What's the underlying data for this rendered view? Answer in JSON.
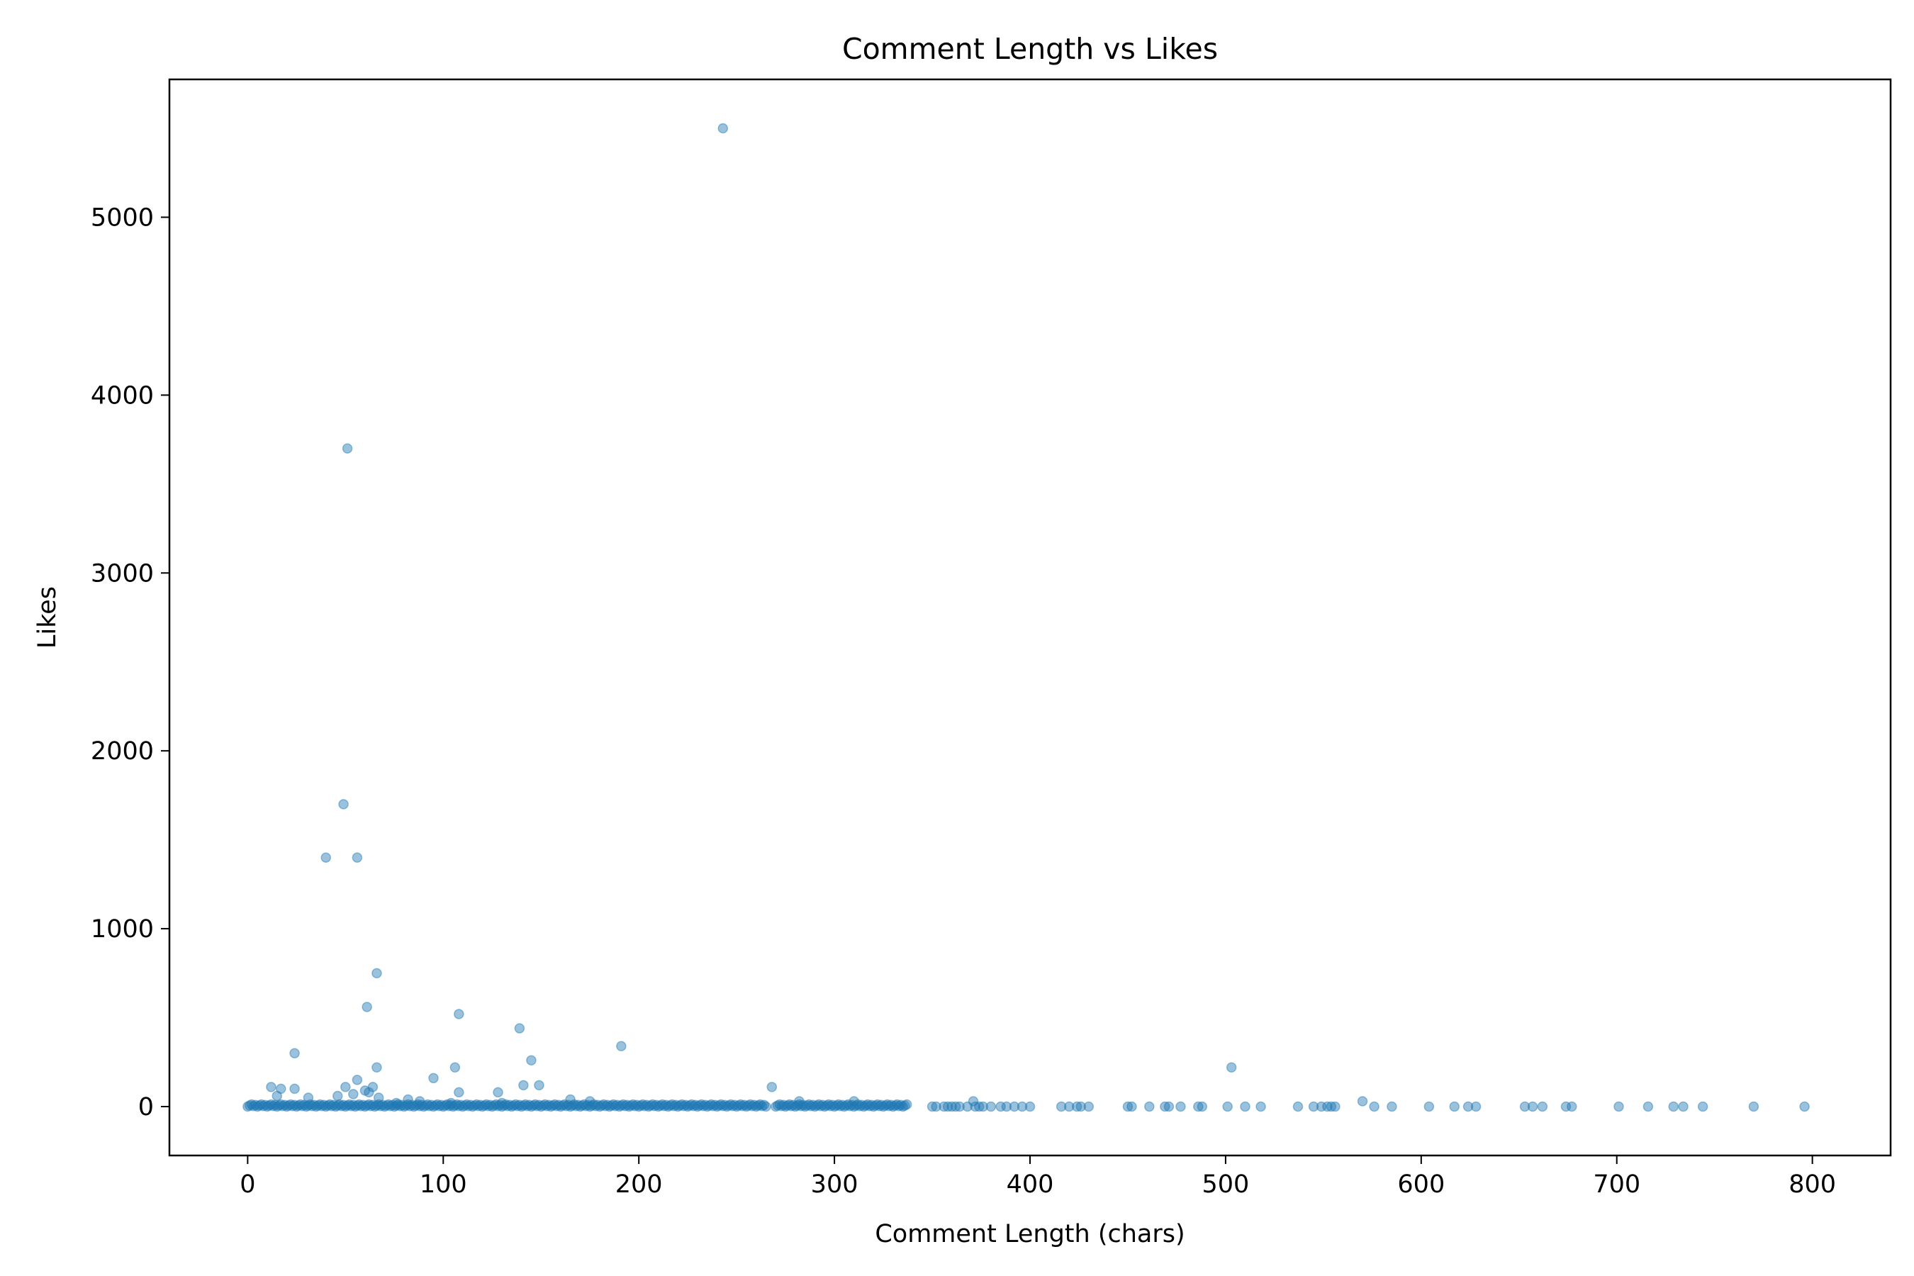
{
  "chart_data": {
    "type": "scatter",
    "title": "Comment Length vs Likes",
    "xlabel": "Comment Length (chars)",
    "ylabel": "Likes",
    "xlim": [
      -40,
      840
    ],
    "ylim": [
      -275,
      5775
    ],
    "xticks": [
      0,
      100,
      200,
      300,
      400,
      500,
      600,
      700,
      800
    ],
    "yticks": [
      0,
      1000,
      2000,
      3000,
      4000,
      5000
    ],
    "grid": false,
    "legend": "none",
    "colors": {
      "marker": "#1f77b4"
    },
    "marker_alpha": 0.45,
    "baseline_dense_ranges": [
      [
        0,
        265
      ],
      [
        270,
        337
      ]
    ],
    "points": [
      [
        243,
        5500
      ],
      [
        51,
        3700
      ],
      [
        49,
        1700
      ],
      [
        40,
        1400
      ],
      [
        56,
        1400
      ],
      [
        66,
        750
      ],
      [
        61,
        560
      ],
      [
        108,
        520
      ],
      [
        139,
        440
      ],
      [
        191,
        340
      ],
      [
        24,
        300
      ],
      [
        145,
        260
      ],
      [
        66,
        220
      ],
      [
        106,
        220
      ],
      [
        503,
        220
      ],
      [
        95,
        160
      ],
      [
        56,
        150
      ],
      [
        149,
        120
      ],
      [
        141,
        120
      ],
      [
        268,
        110
      ],
      [
        12,
        110
      ],
      [
        50,
        110
      ],
      [
        64,
        110
      ],
      [
        17,
        100
      ],
      [
        24,
        100
      ],
      [
        60,
        90
      ],
      [
        62,
        80
      ],
      [
        108,
        80
      ],
      [
        128,
        80
      ],
      [
        54,
        70
      ],
      [
        15,
        60
      ],
      [
        46,
        60
      ],
      [
        31,
        50
      ],
      [
        67,
        50
      ],
      [
        82,
        40
      ],
      [
        165,
        40
      ],
      [
        175,
        30
      ],
      [
        88,
        30
      ],
      [
        282,
        30
      ],
      [
        310,
        30
      ],
      [
        371,
        30
      ],
      [
        570,
        30
      ],
      [
        104,
        20
      ],
      [
        130,
        20
      ],
      [
        76,
        20
      ],
      [
        350,
        0
      ],
      [
        352,
        0
      ],
      [
        356,
        0
      ],
      [
        358,
        0
      ],
      [
        360,
        0
      ],
      [
        362,
        0
      ],
      [
        364,
        0
      ],
      [
        368,
        0
      ],
      [
        372,
        0
      ],
      [
        374,
        0
      ],
      [
        376,
        0
      ],
      [
        380,
        0
      ],
      [
        385,
        0
      ],
      [
        388,
        0
      ],
      [
        392,
        0
      ],
      [
        396,
        0
      ],
      [
        400,
        0
      ],
      [
        416,
        0
      ],
      [
        420,
        0
      ],
      [
        424,
        0
      ],
      [
        426,
        0
      ],
      [
        430,
        0
      ],
      [
        450,
        0
      ],
      [
        452,
        0
      ],
      [
        461,
        0
      ],
      [
        469,
        0
      ],
      [
        471,
        0
      ],
      [
        477,
        0
      ],
      [
        486,
        0
      ],
      [
        488,
        0
      ],
      [
        501,
        0
      ],
      [
        510,
        0
      ],
      [
        518,
        0
      ],
      [
        537,
        0
      ],
      [
        545,
        0
      ],
      [
        549,
        0
      ],
      [
        552,
        0
      ],
      [
        554,
        0
      ],
      [
        556,
        0
      ],
      [
        576,
        0
      ],
      [
        585,
        0
      ],
      [
        604,
        0
      ],
      [
        617,
        0
      ],
      [
        624,
        0
      ],
      [
        628,
        0
      ],
      [
        653,
        0
      ],
      [
        657,
        0
      ],
      [
        662,
        0
      ],
      [
        674,
        0
      ],
      [
        677,
        0
      ],
      [
        701,
        0
      ],
      [
        716,
        0
      ],
      [
        729,
        0
      ],
      [
        734,
        0
      ],
      [
        744,
        0
      ],
      [
        770,
        0
      ],
      [
        796,
        0
      ]
    ]
  }
}
